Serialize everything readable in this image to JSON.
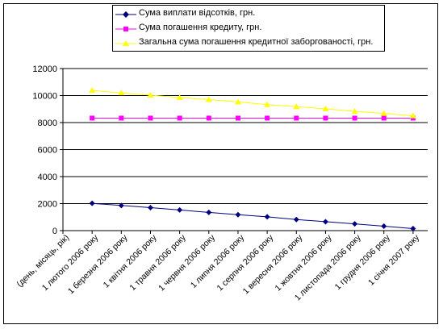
{
  "chart_data": {
    "type": "line",
    "title": "",
    "xlabel": "",
    "ylabel": "",
    "ylim": [
      0,
      12000
    ],
    "yticks": [
      0,
      2000,
      4000,
      6000,
      8000,
      10000,
      12000
    ],
    "grid": true,
    "legend_position": "top",
    "categories": [
      "(день, місяць, рік)",
      "1 лютого 2006 року",
      "1 березня 2006 року",
      "1 квітня 2006 року",
      "1 травня 2006 року",
      "1 червня 2006 року",
      "1 липня 2006 року",
      "1 серпня 2006 року",
      "1 вересня 2006 року",
      "1 жовтня 2006 року",
      "1 листопада 2006 року",
      "1 грудня 2006 року",
      "1 січня 2007 року"
    ],
    "series": [
      {
        "name": "Сума виплати відсотків, грн.",
        "color": "#000080",
        "marker": "diamond",
        "values": [
          null,
          2020,
          1860,
          1700,
          1530,
          1350,
          1180,
          1020,
          820,
          660,
          500,
          330,
          150
        ]
      },
      {
        "name": "Сума погашення кредиту, грн.",
        "color": "#ff00ff",
        "marker": "square",
        "values": [
          null,
          8330,
          8330,
          8330,
          8330,
          8330,
          8330,
          8330,
          8330,
          8330,
          8330,
          8330,
          8330
        ]
      },
      {
        "name": "Загальна сума погашення кредитної заборгованості, грн.",
        "color": "#ffff00",
        "marker": "triangle",
        "values": [
          null,
          10380,
          10200,
          10030,
          9850,
          9700,
          9530,
          9330,
          9180,
          9020,
          8830,
          8680,
          8500
        ]
      }
    ]
  }
}
